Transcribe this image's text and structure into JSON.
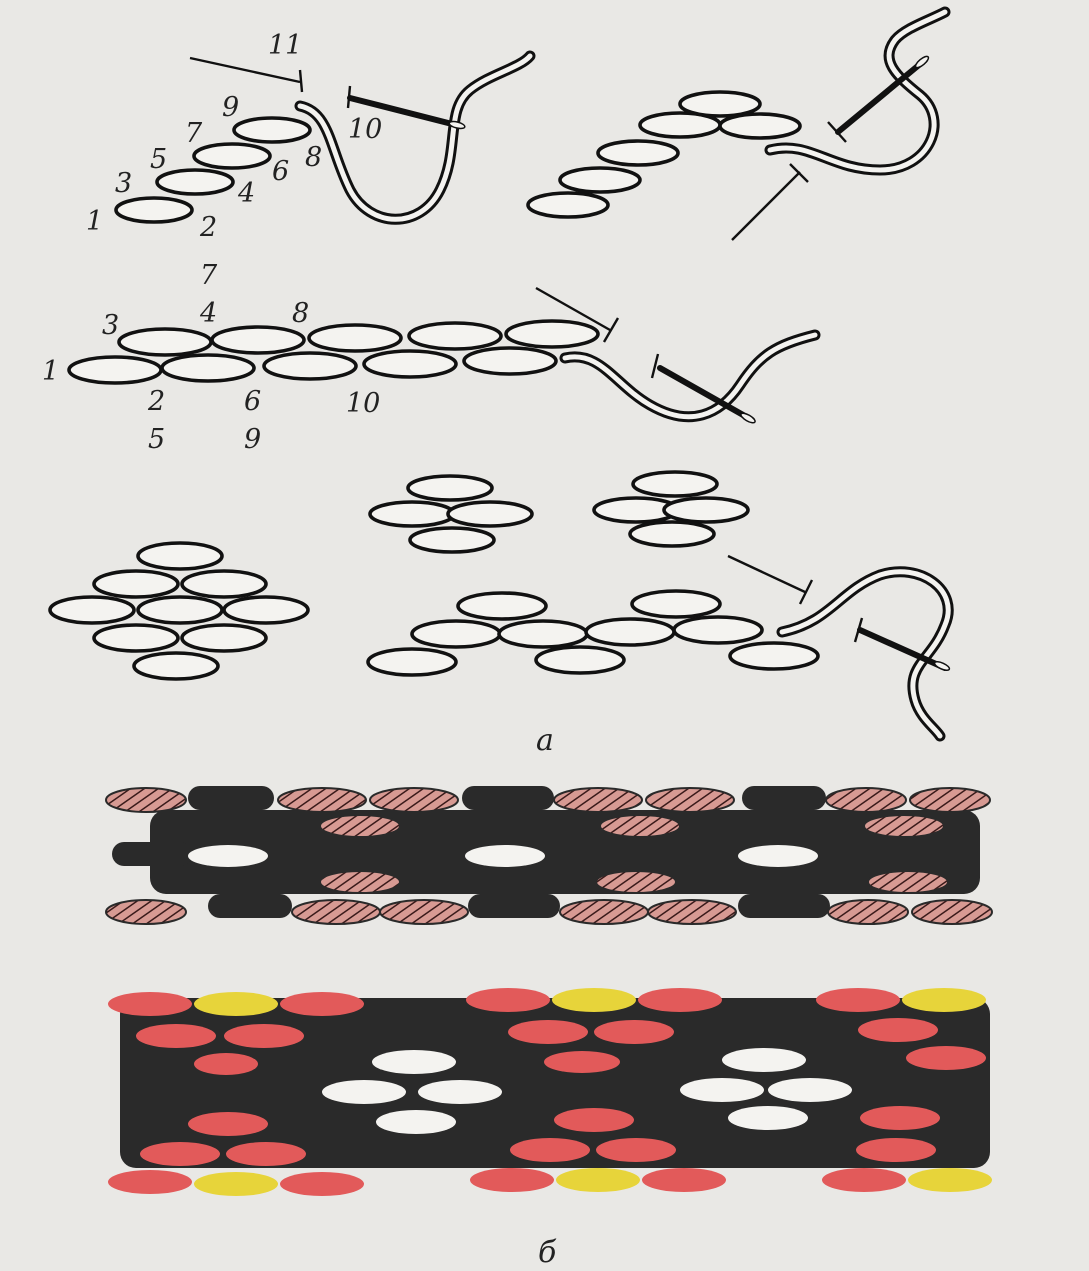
{
  "figure": {
    "caption_a": "а",
    "caption_b": "б"
  },
  "diagram1_labels": {
    "n1": "1",
    "n2": "2",
    "n3": "3",
    "n4": "4",
    "n5": "5",
    "n6": "6",
    "n7": "7",
    "n8": "8",
    "n9": "9",
    "n10": "10",
    "n11": "11"
  },
  "diagram3_labels": {
    "n1": "1",
    "n2": "2",
    "n3": "3",
    "n4": "4",
    "n5": "5",
    "n6": "6",
    "n7": "7",
    "n8": "8",
    "n9": "9",
    "n10": "10"
  },
  "colors": {
    "black_stitch": "#2a2a2a",
    "hatched_pink": "#d79a93",
    "red_stitch": "#e25a5a",
    "yellow_stitch": "#e7d43a",
    "white_stitch": "#f4f3f0"
  }
}
